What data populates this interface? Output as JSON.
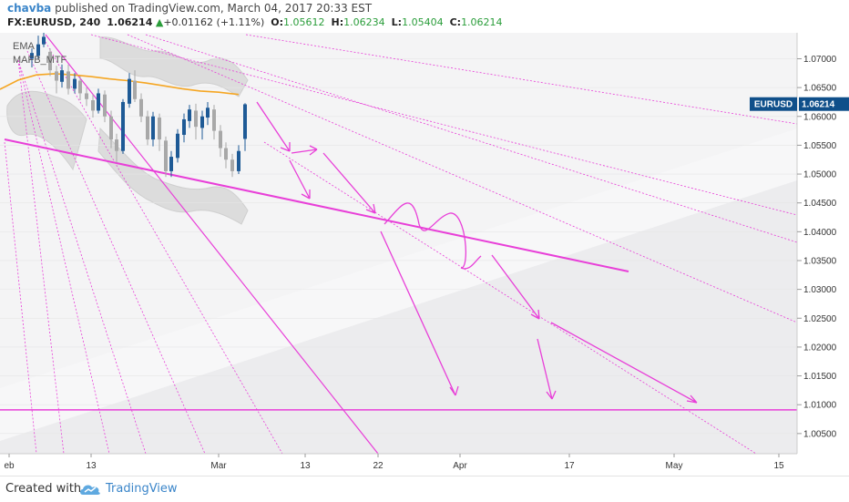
{
  "header": {
    "author": "chavba",
    "published_text": "published on TradingView.com, March 04, 2017 20:33 EST",
    "symbol": "FX:EURUSD, 240",
    "last": "1.06214",
    "change": "+0.01162 (+1.11%)",
    "o_label": "O:",
    "o_val": "1.05612",
    "h_label": "H:",
    "h_val": "1.06234",
    "l_label": "L:",
    "l_val": "1.05404",
    "c_label": "C:",
    "c_val": "1.06214"
  },
  "indicators": [
    "EMA",
    "MAFB_MTF"
  ],
  "price_tag": {
    "symbol": "EURUSD",
    "value": "1.06214",
    "price": 1.06214
  },
  "colors": {
    "accent": "#3a85c9",
    "bull": "#2a9d3a",
    "candle_up": "#1e5a96",
    "candle_down": "#a8a8a8",
    "ema": "#f5a623",
    "annotations": "#e83fd8",
    "tag": "#0f4f8a"
  },
  "chart_data": {
    "type": "candlestick",
    "y_ticks": [
      "1.07000",
      "1.06500",
      "1.06000",
      "1.05500",
      "1.05000",
      "1.04500",
      "1.04000",
      "1.03500",
      "1.03000",
      "1.02500",
      "1.02000",
      "1.01500",
      "1.01000",
      "1.00500"
    ],
    "x_ticks": [
      "eb",
      "13",
      "Mar",
      "13",
      "22",
      "Apr",
      "17",
      "May",
      "15"
    ],
    "ylim": [
      1.0015,
      1.0745
    ],
    "horizontal_level": 1.0091,
    "ema_points": [
      [
        0,
        1.0647
      ],
      [
        20,
        1.0663
      ],
      [
        40,
        1.0672
      ],
      [
        60,
        1.0674
      ],
      [
        80,
        1.0672
      ],
      [
        100,
        1.0669
      ],
      [
        120,
        1.0665
      ],
      [
        140,
        1.0662
      ],
      [
        160,
        1.0658
      ],
      [
        180,
        1.0653
      ],
      [
        200,
        1.0648
      ],
      [
        220,
        1.0644
      ],
      [
        240,
        1.0642
      ],
      [
        262,
        1.0638
      ]
    ],
    "candles": [
      [
        35,
        1.07,
        1.071,
        1.0685,
        1.0718
      ],
      [
        42,
        1.0705,
        1.0725,
        1.07,
        1.074
      ],
      [
        48,
        1.0725,
        1.0738,
        1.072,
        1.0745
      ],
      [
        55,
        1.0712,
        1.068,
        1.067,
        1.0718
      ],
      [
        62,
        1.0678,
        1.0662,
        1.064,
        1.0688
      ],
      [
        68,
        1.066,
        1.068,
        1.065,
        1.069
      ],
      [
        75,
        1.0678,
        1.0648,
        1.0638,
        1.069
      ],
      [
        82,
        1.0648,
        1.0665,
        1.064,
        1.0675
      ],
      [
        88,
        1.0662,
        1.064,
        1.0628,
        1.067
      ],
      [
        95,
        1.064,
        1.063,
        1.0618,
        1.065
      ],
      [
        102,
        1.0628,
        1.061,
        1.0598,
        1.0638
      ],
      [
        108,
        1.061,
        1.064,
        1.0605,
        1.0648
      ],
      [
        115,
        1.0638,
        1.06,
        1.059,
        1.0645
      ],
      [
        122,
        1.06,
        1.056,
        1.0545,
        1.061
      ],
      [
        128,
        1.056,
        1.054,
        1.052,
        1.057
      ],
      [
        135,
        1.054,
        1.0625,
        1.0535,
        1.063
      ],
      [
        142,
        1.0622,
        1.0665,
        1.0615,
        1.0675
      ],
      [
        148,
        1.0662,
        1.063,
        1.0625,
        1.068
      ],
      [
        155,
        1.063,
        1.06,
        1.059,
        1.064
      ],
      [
        162,
        1.06,
        1.056,
        1.055,
        1.061
      ],
      [
        168,
        1.056,
        1.06,
        1.0548,
        1.0608
      ],
      [
        175,
        1.0598,
        1.056,
        1.054,
        1.0605
      ],
      [
        182,
        1.0558,
        1.0505,
        1.0495,
        1.0565
      ],
      [
        188,
        1.0505,
        1.053,
        1.0495,
        1.054
      ],
      [
        195,
        1.0528,
        1.057,
        1.052,
        1.0578
      ],
      [
        202,
        1.0568,
        1.0595,
        1.0555,
        1.0605
      ],
      [
        208,
        1.0592,
        1.0612,
        1.058,
        1.062
      ],
      [
        215,
        1.061,
        1.0582,
        1.056,
        1.0622
      ],
      [
        222,
        1.058,
        1.06,
        1.056,
        1.061
      ],
      [
        228,
        1.0598,
        1.0615,
        1.0585,
        1.0625
      ],
      [
        235,
        1.0612,
        1.0575,
        1.056,
        1.062
      ],
      [
        242,
        1.0575,
        1.0545,
        1.053,
        1.0585
      ],
      [
        248,
        1.0545,
        1.0525,
        1.051,
        1.0555
      ],
      [
        255,
        1.0525,
        1.0505,
        1.0495,
        1.0535
      ],
      [
        262,
        1.0505,
        1.054,
        1.05,
        1.055
      ],
      [
        269,
        1.0561,
        1.0621,
        1.054,
        1.0623
      ]
    ]
  }
}
